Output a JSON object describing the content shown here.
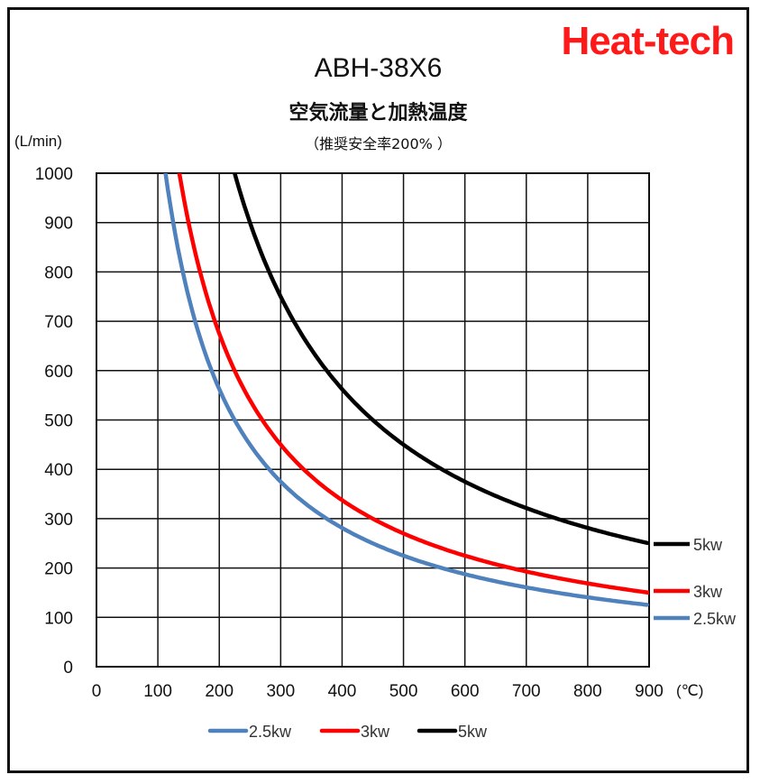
{
  "header": {
    "brand": "Heat-tech",
    "title": "ABH-38X6",
    "subtitle": "空気流量と加熱温度",
    "note": "（推奨安全率200% ）"
  },
  "chart_data": {
    "type": "line",
    "title": "ABH-38X6",
    "subtitle": "空気流量と加熱温度",
    "ylabel": "(L/min)",
    "xlabel": "(℃)",
    "xlim": [
      0,
      900
    ],
    "ylim": [
      0,
      1000
    ],
    "x_ticks": [
      "0",
      "100",
      "200",
      "300",
      "400",
      "500",
      "600",
      "700",
      "800",
      "900"
    ],
    "y_ticks": [
      "0",
      "100",
      "200",
      "300",
      "400",
      "500",
      "600",
      "700",
      "800",
      "900",
      "1000"
    ],
    "grid": true,
    "legend_position": "bottom",
    "x": [
      120,
      150,
      200,
      250,
      300,
      350,
      400,
      450,
      500,
      550,
      600,
      650,
      700,
      750,
      800,
      850,
      900
    ],
    "series": [
      {
        "name": "2.5kw",
        "color": "#4f81bd",
        "values": [
          940,
          750,
          563,
          450,
          375,
          321,
          281,
          250,
          225,
          205,
          188,
          173,
          161,
          150,
          141,
          132,
          125
        ]
      },
      {
        "name": "3kw",
        "color": "#ff0000",
        "values": [
          null,
          900,
          675,
          540,
          450,
          386,
          338,
          300,
          270,
          245,
          225,
          208,
          193,
          180,
          169,
          159,
          150
        ]
      },
      {
        "name": "5kw",
        "color": "#000000",
        "values": [
          null,
          null,
          null,
          900,
          750,
          643,
          563,
          500,
          450,
          409,
          375,
          346,
          321,
          300,
          281,
          265,
          250
        ]
      }
    ]
  }
}
